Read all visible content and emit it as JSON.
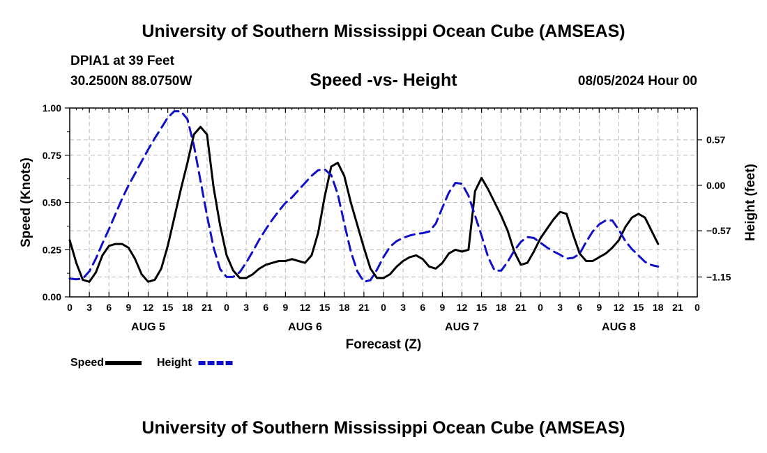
{
  "header": {
    "top_title": "University of Southern Mississippi Ocean Cube (AMSEAS)",
    "station": "DPIA1 at 39 Feet",
    "coords": "30.2500N  88.0750W",
    "subtitle": "Speed -vs- Height",
    "datetime": "08/05/2024 Hour 00",
    "bottom_title": "University of Southern Mississippi Ocean Cube (AMSEAS)"
  },
  "chart_data": {
    "type": "line",
    "title": "Speed -vs- Height",
    "xlabel": "Forecast (Z)",
    "ylabel": "Speed (Knots)",
    "y2label": "Height (feet)",
    "x_unit": "hours from 08/05/2024 00Z",
    "xlim": [
      0,
      96
    ],
    "ylim": [
      0,
      1
    ],
    "y2lim": [
      -1.4,
      0.97
    ],
    "y_ticks": [
      "0.00",
      "0.25",
      "0.50",
      "0.75",
      "1.00"
    ],
    "y2_ticks": [
      {
        "value": 0.57,
        "label": "0.57"
      },
      {
        "value": 0.0,
        "label": "0.00"
      },
      {
        "value": -0.57,
        "label": "−0.57"
      },
      {
        "value": -1.15,
        "label": "−1.15"
      }
    ],
    "x_tick_labels": [
      "0",
      "3",
      "6",
      "9",
      "12",
      "15",
      "18",
      "21",
      "0",
      "3",
      "6",
      "9",
      "12",
      "15",
      "18",
      "21",
      "0",
      "3",
      "6",
      "9",
      "12",
      "15",
      "18",
      "21",
      "0",
      "3",
      "6",
      "9",
      "12",
      "15",
      "18",
      "21",
      "0"
    ],
    "day_labels": [
      {
        "hour": 12,
        "label": "AUG 5"
      },
      {
        "hour": 36,
        "label": "AUG 6"
      },
      {
        "hour": 60,
        "label": "AUG 7"
      },
      {
        "hour": 84,
        "label": "AUG 8"
      }
    ],
    "series": [
      {
        "name": "Speed",
        "axis": "left",
        "color": "#000000",
        "style": "solid",
        "points": [
          [
            0,
            0.3
          ],
          [
            1,
            0.18
          ],
          [
            2,
            0.09
          ],
          [
            3,
            0.08
          ],
          [
            4,
            0.13
          ],
          [
            5,
            0.22
          ],
          [
            6,
            0.27
          ],
          [
            7,
            0.28
          ],
          [
            8,
            0.28
          ],
          [
            9,
            0.26
          ],
          [
            10,
            0.2
          ],
          [
            11,
            0.12
          ],
          [
            12,
            0.08
          ],
          [
            13,
            0.09
          ],
          [
            14,
            0.15
          ],
          [
            15,
            0.27
          ],
          [
            16,
            0.42
          ],
          [
            17,
            0.57
          ],
          [
            18,
            0.71
          ],
          [
            19,
            0.86
          ],
          [
            20,
            0.9
          ],
          [
            21,
            0.86
          ],
          [
            22,
            0.58
          ],
          [
            23,
            0.38
          ],
          [
            24,
            0.22
          ],
          [
            25,
            0.14
          ],
          [
            26,
            0.1
          ],
          [
            27,
            0.1
          ],
          [
            28,
            0.12
          ],
          [
            29,
            0.15
          ],
          [
            30,
            0.17
          ],
          [
            31,
            0.18
          ],
          [
            32,
            0.19
          ],
          [
            33,
            0.19
          ],
          [
            34,
            0.2
          ],
          [
            35,
            0.19
          ],
          [
            36,
            0.18
          ],
          [
            37,
            0.22
          ],
          [
            38,
            0.34
          ],
          [
            39,
            0.53
          ],
          [
            40,
            0.69
          ],
          [
            41,
            0.71
          ],
          [
            42,
            0.64
          ],
          [
            43,
            0.5
          ],
          [
            44,
            0.38
          ],
          [
            45,
            0.26
          ],
          [
            46,
            0.15
          ],
          [
            47,
            0.1
          ],
          [
            48,
            0.1
          ],
          [
            49,
            0.12
          ],
          [
            50,
            0.16
          ],
          [
            51,
            0.19
          ],
          [
            52,
            0.21
          ],
          [
            53,
            0.22
          ],
          [
            54,
            0.2
          ],
          [
            55,
            0.16
          ],
          [
            56,
            0.15
          ],
          [
            57,
            0.18
          ],
          [
            58,
            0.23
          ],
          [
            59,
            0.25
          ],
          [
            60,
            0.24
          ],
          [
            61,
            0.25
          ],
          [
            62,
            0.56
          ],
          [
            63,
            0.63
          ],
          [
            64,
            0.57
          ],
          [
            65,
            0.5
          ],
          [
            66,
            0.43
          ],
          [
            67,
            0.35
          ],
          [
            68,
            0.24
          ],
          [
            69,
            0.17
          ],
          [
            70,
            0.18
          ],
          [
            71,
            0.24
          ],
          [
            72,
            0.31
          ],
          [
            73,
            0.36
          ],
          [
            74,
            0.41
          ],
          [
            75,
            0.45
          ],
          [
            76,
            0.44
          ],
          [
            77,
            0.33
          ],
          [
            78,
            0.23
          ],
          [
            79,
            0.19
          ],
          [
            80,
            0.19
          ],
          [
            81,
            0.21
          ],
          [
            82,
            0.23
          ],
          [
            83,
            0.26
          ],
          [
            84,
            0.3
          ],
          [
            85,
            0.37
          ],
          [
            86,
            0.42
          ],
          [
            87,
            0.44
          ],
          [
            88,
            0.42
          ],
          [
            89,
            0.35
          ],
          [
            90,
            0.28
          ]
        ]
      },
      {
        "name": "Height",
        "axis": "right",
        "color": "#1010c8",
        "style": "dashed",
        "points": [
          [
            0,
            -1.17
          ],
          [
            1,
            -1.18
          ],
          [
            2,
            -1.17
          ],
          [
            3,
            -1.08
          ],
          [
            4,
            -0.92
          ],
          [
            5,
            -0.73
          ],
          [
            6,
            -0.55
          ],
          [
            7,
            -0.36
          ],
          [
            8,
            -0.17
          ],
          [
            9,
            0.0
          ],
          [
            10,
            0.15
          ],
          [
            11,
            0.3
          ],
          [
            12,
            0.45
          ],
          [
            13,
            0.59
          ],
          [
            14,
            0.72
          ],
          [
            15,
            0.85
          ],
          [
            16,
            0.93
          ],
          [
            17,
            0.93
          ],
          [
            18,
            0.83
          ],
          [
            19,
            0.5
          ],
          [
            20,
            0.06
          ],
          [
            21,
            -0.38
          ],
          [
            22,
            -0.78
          ],
          [
            23,
            -1.05
          ],
          [
            24,
            -1.15
          ],
          [
            25,
            -1.15
          ],
          [
            26,
            -1.09
          ],
          [
            27,
            -0.97
          ],
          [
            28,
            -0.83
          ],
          [
            29,
            -0.68
          ],
          [
            30,
            -0.55
          ],
          [
            31,
            -0.43
          ],
          [
            32,
            -0.32
          ],
          [
            33,
            -0.22
          ],
          [
            34,
            -0.15
          ],
          [
            35,
            -0.06
          ],
          [
            36,
            0.03
          ],
          [
            37,
            0.12
          ],
          [
            38,
            0.19
          ],
          [
            39,
            0.2
          ],
          [
            40,
            0.13
          ],
          [
            41,
            -0.11
          ],
          [
            42,
            -0.48
          ],
          [
            43,
            -0.83
          ],
          [
            44,
            -1.08
          ],
          [
            45,
            -1.21
          ],
          [
            46,
            -1.19
          ],
          [
            47,
            -1.06
          ],
          [
            48,
            -0.9
          ],
          [
            49,
            -0.77
          ],
          [
            50,
            -0.7
          ],
          [
            51,
            -0.66
          ],
          [
            52,
            -0.63
          ],
          [
            53,
            -0.61
          ],
          [
            54,
            -0.6
          ],
          [
            55,
            -0.58
          ],
          [
            56,
            -0.48
          ],
          [
            57,
            -0.28
          ],
          [
            58,
            -0.09
          ],
          [
            59,
            0.03
          ],
          [
            60,
            0.02
          ],
          [
            61,
            -0.13
          ],
          [
            62,
            -0.38
          ],
          [
            63,
            -0.63
          ],
          [
            64,
            -0.9
          ],
          [
            65,
            -1.07
          ],
          [
            66,
            -1.07
          ],
          [
            67,
            -0.96
          ],
          [
            68,
            -0.82
          ],
          [
            69,
            -0.71
          ],
          [
            70,
            -0.65
          ],
          [
            71,
            -0.66
          ],
          [
            72,
            -0.72
          ],
          [
            73,
            -0.78
          ],
          [
            74,
            -0.83
          ],
          [
            75,
            -0.87
          ],
          [
            76,
            -0.92
          ],
          [
            77,
            -0.91
          ],
          [
            78,
            -0.86
          ],
          [
            79,
            -0.71
          ],
          [
            80,
            -0.58
          ],
          [
            81,
            -0.49
          ],
          [
            82,
            -0.44
          ],
          [
            83,
            -0.44
          ],
          [
            84,
            -0.56
          ],
          [
            85,
            -0.7
          ],
          [
            86,
            -0.8
          ],
          [
            87,
            -0.88
          ],
          [
            88,
            -0.96
          ],
          [
            89,
            -1.0
          ],
          [
            90,
            -1.02
          ]
        ]
      }
    ],
    "legend": {
      "placement": "bottom-left",
      "items": [
        {
          "label": "Speed",
          "color": "#000000",
          "style": "solid"
        },
        {
          "label": "Height",
          "color": "#1010c8",
          "style": "dashed"
        }
      ]
    },
    "grid": true
  }
}
